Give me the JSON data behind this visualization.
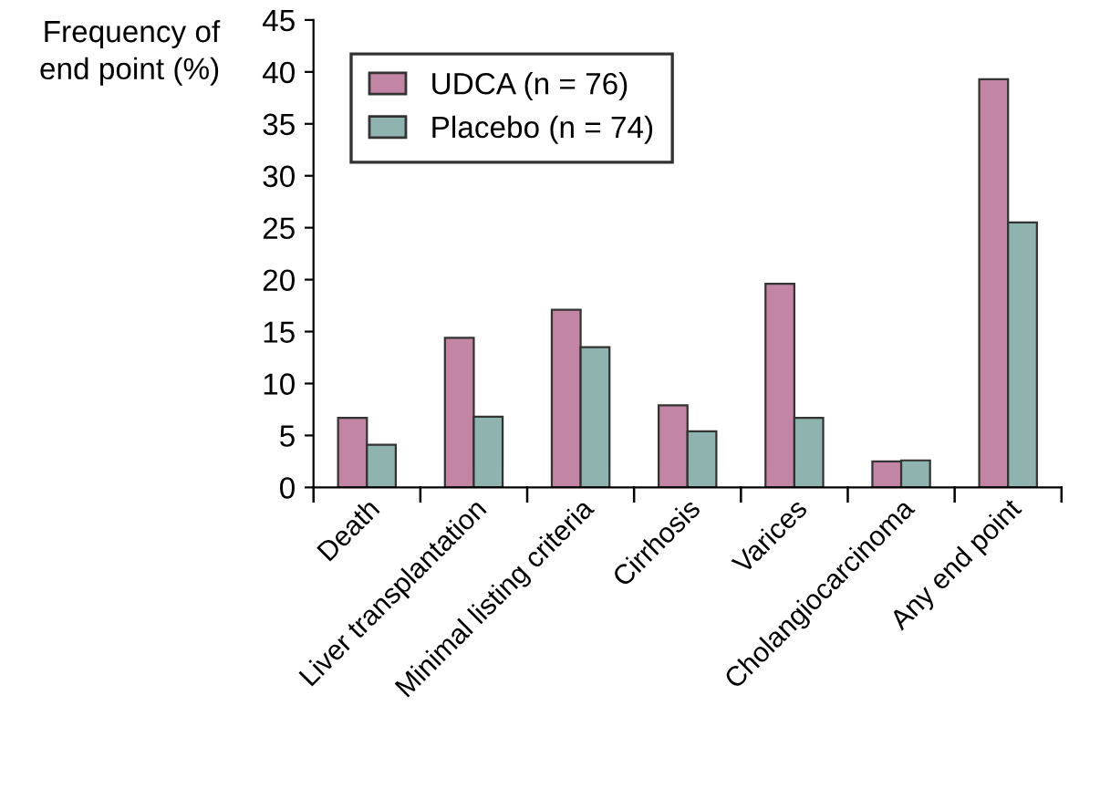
{
  "chart_data": {
    "type": "bar",
    "ylabel": "Frequency of\nend point (%)",
    "categories": [
      "Death",
      "Liver transplantation",
      "Minimal listing criteria",
      "Cirrhosis",
      "Varices",
      "Cholangiocarcinoma",
      "Any end point"
    ],
    "series": [
      {
        "name": "UDCA (n = 76)",
        "color": "#c285a3",
        "values": [
          6.7,
          14.4,
          17.1,
          7.9,
          19.6,
          2.5,
          39.3
        ]
      },
      {
        "name": "Placebo (n = 74)",
        "color": "#8fb3ae",
        "values": [
          4.1,
          6.8,
          13.5,
          5.4,
          6.7,
          2.6,
          25.5
        ]
      }
    ],
    "ylim": [
      0,
      45
    ],
    "yticks": [
      0,
      5,
      10,
      15,
      20,
      25,
      30,
      35,
      40,
      45
    ],
    "grid": false,
    "legend": "top left"
  }
}
